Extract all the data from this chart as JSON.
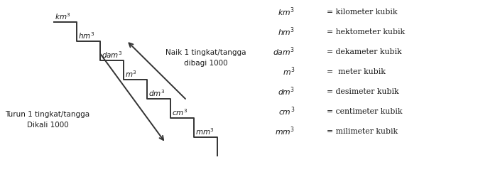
{
  "bg_color": "#ffffff",
  "text_color": "#1a1a1a",
  "stair_color": "#333333",
  "stair_labels": [
    "km",
    "hm",
    "dam",
    "m",
    "dm",
    "cm",
    "mm"
  ],
  "arrow_up_text1": "Naik 1 tingkat/tangga",
  "arrow_up_text2": "dibagi 1000",
  "arrow_down_text1": "Turun 1 tingkat/tangga",
  "arrow_down_text2": "Dikali 1000",
  "legend_items": [
    [
      "km",
      "= kilometer kubik"
    ],
    [
      "hm",
      "= hektometer kubik"
    ],
    [
      "dam",
      "= dekameter kubik"
    ],
    [
      "m",
      "=  meter kubik"
    ],
    [
      "dm",
      "= desimeter kubik"
    ],
    [
      "cm",
      "= centimeter kubik"
    ],
    [
      "mm",
      "= milimeter kubik"
    ]
  ],
  "figsize": [
    6.73,
    2.49
  ],
  "dpi": 100
}
